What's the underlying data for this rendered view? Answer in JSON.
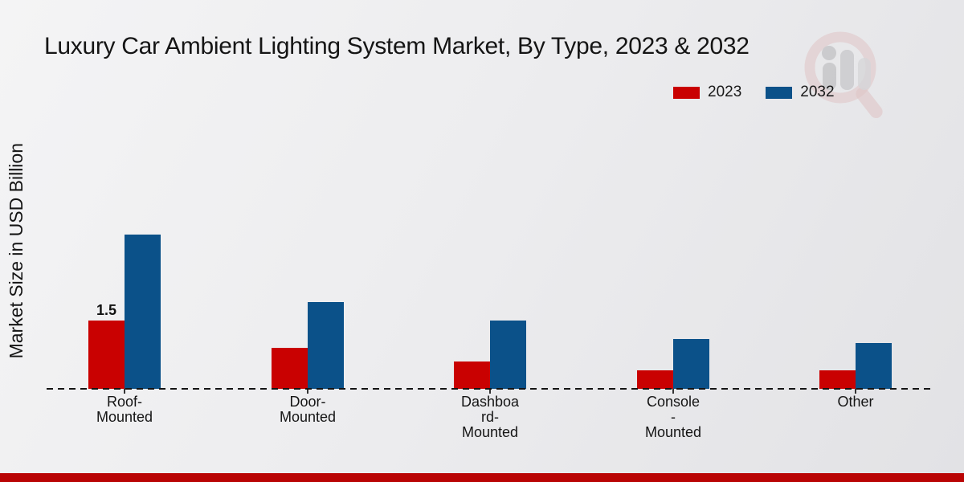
{
  "title": "Luxury Car Ambient Lighting System Market, By Type, 2023 & 2032",
  "y_axis_label": "Market Size in USD Billion",
  "legend": [
    {
      "label": "2023",
      "color": "#c90101"
    },
    {
      "label": "2032",
      "color": "#0b5189"
    }
  ],
  "colors": {
    "series_2023": "#c90101",
    "series_2032": "#0b5189",
    "footer_band": "#b90404",
    "baseline": "#141414"
  },
  "annotation_label": "1.5",
  "chart_data": {
    "type": "bar",
    "title": "Luxury Car Ambient Lighting System Market, By Type, 2023 & 2032",
    "ylabel": "Market Size in USD Billion",
    "xlabel": "",
    "categories": [
      "Roof-Mounted",
      "Door-Mounted",
      "Dashboard-Mounted",
      "Console-Mounted",
      "Other"
    ],
    "category_display_lines": [
      [
        "Roof-",
        "Mounted"
      ],
      [
        "Door-",
        "Mounted"
      ],
      [
        "Dashboa",
        "rd-",
        "Mounted"
      ],
      [
        "Console",
        "-",
        "Mounted"
      ],
      [
        "Other"
      ]
    ],
    "series": [
      {
        "name": "2023",
        "color": "#c90101",
        "values": [
          1.5,
          0.9,
          0.6,
          0.4,
          0.4
        ]
      },
      {
        "name": "2032",
        "color": "#0b5189",
        "values": [
          3.4,
          1.9,
          1.5,
          1.1,
          1.0
        ]
      }
    ],
    "data_labels": {
      "series": "2023",
      "values": [
        "1.5",
        null,
        null,
        null,
        null
      ]
    },
    "ylim": [
      0,
      3.8
    ],
    "grid": false,
    "legend_position": "top-right",
    "baseline_style": "dashed"
  }
}
